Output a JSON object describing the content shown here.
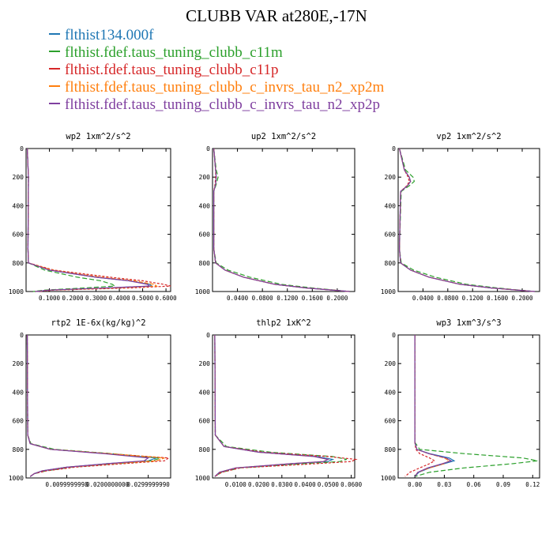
{
  "title": "CLUBB VAR at280E,-17N",
  "colors": [
    "#1f77b4",
    "#2ca02c",
    "#d62728",
    "#ff7f0e",
    "#7f3f9f"
  ],
  "legend": [
    {
      "label": "flthist134.000f",
      "color": "#1f77b4"
    },
    {
      "label": "flthist.fdef.taus_tuning_clubb_c11m",
      "color": "#2ca02c"
    },
    {
      "label": "flthist.fdef.taus_tuning_clubb_c11p",
      "color": "#d62728"
    },
    {
      "label": "flthist.fdef.taus_tuning_clubb_c_invrs_tau_n2_xp2m",
      "color": "#ff7f0e"
    },
    {
      "label": "flthist.fdef.taus_tuning_clubb_c_invrs_tau_n2_xp2p",
      "color": "#7f3f9f"
    }
  ],
  "chart_data": [
    {
      "type": "line",
      "title": "wp2  1xm^2/s^2",
      "xlim": [
        0.0,
        0.62
      ],
      "ylim": [
        1000,
        0
      ],
      "xticks": [
        0.1,
        0.2,
        0.3,
        0.4,
        0.5,
        0.6
      ],
      "xticklabels": [
        "0.1000",
        "0.2000",
        "0.3000",
        "0.4000",
        "0.5000",
        "0.6000"
      ],
      "yticks": [
        0,
        200,
        400,
        600,
        800,
        1000
      ],
      "yticklabels": [
        "0",
        "200",
        "400",
        "600",
        "800",
        "1000"
      ],
      "y": [
        0,
        200,
        700,
        800,
        850,
        900,
        925,
        950,
        962,
        975,
        990,
        1000
      ],
      "series": [
        {
          "values": [
            0.005,
            0.01,
            0.008,
            0.01,
            0.1,
            0.3,
            0.44,
            0.53,
            0.54,
            0.35,
            0.1,
            0.04
          ]
        },
        {
          "values": [
            0.005,
            0.01,
            0.008,
            0.01,
            0.08,
            0.22,
            0.32,
            0.37,
            0.38,
            0.25,
            0.08,
            0.03
          ]
        },
        {
          "values": [
            0.005,
            0.01,
            0.008,
            0.01,
            0.12,
            0.36,
            0.5,
            0.59,
            0.62,
            0.45,
            0.12,
            0.05
          ]
        },
        {
          "values": [
            0.005,
            0.01,
            0.008,
            0.01,
            0.11,
            0.32,
            0.46,
            0.55,
            0.56,
            0.38,
            0.1,
            0.04
          ]
        },
        {
          "values": [
            0.005,
            0.01,
            0.008,
            0.01,
            0.1,
            0.3,
            0.44,
            0.52,
            0.53,
            0.34,
            0.1,
            0.04
          ]
        }
      ]
    },
    {
      "type": "line",
      "title": "up2  1xm^2/s^2",
      "xlim": [
        0.0,
        0.228
      ],
      "ylim": [
        1000,
        0
      ],
      "xticks": [
        0.04,
        0.08,
        0.12,
        0.16,
        0.2
      ],
      "xticklabels": [
        "0.0400",
        "0.0800",
        "0.1200",
        "0.1600",
        "0.2000"
      ],
      "yticks": [
        0,
        200,
        400,
        600,
        800,
        1000
      ],
      "yticklabels": [
        "0",
        "200",
        "400",
        "600",
        "800",
        "1000"
      ],
      "y": [
        0,
        150,
        200,
        250,
        300,
        700,
        800,
        850,
        900,
        950,
        975,
        1000
      ],
      "series": [
        {
          "values": [
            0.002,
            0.005,
            0.006,
            0.005,
            0.002,
            0.002,
            0.005,
            0.02,
            0.05,
            0.1,
            0.15,
            0.22
          ]
        },
        {
          "values": [
            0.002,
            0.006,
            0.009,
            0.006,
            0.002,
            0.002,
            0.006,
            0.025,
            0.06,
            0.11,
            0.16,
            0.22
          ]
        },
        {
          "values": [
            0.002,
            0.005,
            0.005,
            0.004,
            0.002,
            0.002,
            0.005,
            0.02,
            0.05,
            0.1,
            0.15,
            0.22
          ]
        },
        {
          "values": [
            0.002,
            0.005,
            0.006,
            0.005,
            0.002,
            0.002,
            0.005,
            0.02,
            0.05,
            0.1,
            0.15,
            0.22
          ]
        },
        {
          "values": [
            0.002,
            0.005,
            0.006,
            0.005,
            0.002,
            0.002,
            0.005,
            0.02,
            0.05,
            0.1,
            0.15,
            0.22
          ]
        }
      ]
    },
    {
      "type": "line",
      "title": "vp2  1xm^2/s^2",
      "xlim": [
        0.0,
        0.228
      ],
      "ylim": [
        1000,
        0
      ],
      "xticks": [
        0.04,
        0.08,
        0.12,
        0.16,
        0.2
      ],
      "xticklabels": [
        "0.0400",
        "0.0800",
        "0.1200",
        "0.1600",
        "0.2000"
      ],
      "yticks": [
        0,
        200,
        400,
        600,
        800,
        1000
      ],
      "yticklabels": [
        "0",
        "200",
        "400",
        "600",
        "800",
        "1000"
      ],
      "y": [
        0,
        150,
        200,
        230,
        260,
        300,
        700,
        800,
        850,
        900,
        950,
        975,
        1000
      ],
      "series": [
        {
          "values": [
            0.002,
            0.01,
            0.018,
            0.02,
            0.015,
            0.004,
            0.002,
            0.004,
            0.02,
            0.05,
            0.1,
            0.15,
            0.22
          ]
        },
        {
          "values": [
            0.002,
            0.012,
            0.024,
            0.026,
            0.018,
            0.005,
            0.002,
            0.005,
            0.025,
            0.06,
            0.11,
            0.16,
            0.22
          ]
        },
        {
          "values": [
            0.002,
            0.01,
            0.016,
            0.018,
            0.014,
            0.004,
            0.002,
            0.004,
            0.02,
            0.05,
            0.1,
            0.15,
            0.22
          ]
        },
        {
          "values": [
            0.002,
            0.01,
            0.018,
            0.02,
            0.015,
            0.004,
            0.002,
            0.004,
            0.02,
            0.05,
            0.1,
            0.15,
            0.22
          ]
        },
        {
          "values": [
            0.002,
            0.01,
            0.018,
            0.02,
            0.015,
            0.004,
            0.002,
            0.004,
            0.02,
            0.05,
            0.1,
            0.15,
            0.22
          ]
        }
      ]
    },
    {
      "type": "line",
      "title": "rtp2  1E-6x(kg/kg)^2",
      "xlim": [
        0.0,
        0.0355
      ],
      "ylim": [
        1000,
        0
      ],
      "xticks": [
        0.01,
        0.02,
        0.03
      ],
      "xticklabels": [
        "0.0099999998",
        "0.0200000000",
        "0.0299999990"
      ],
      "yticks": [
        0,
        200,
        400,
        600,
        800,
        1000
      ],
      "yticklabels": [
        "0",
        "200",
        "400",
        "600",
        "800",
        "1000"
      ],
      "y": [
        0,
        700,
        760,
        800,
        830,
        860,
        880,
        900,
        925,
        950,
        970,
        990
      ],
      "series": [
        {
          "values": [
            0.0003,
            0.0004,
            0.001,
            0.006,
            0.02,
            0.032,
            0.03,
            0.02,
            0.01,
            0.004,
            0.002,
            0.001
          ]
        },
        {
          "values": [
            0.0003,
            0.0004,
            0.0012,
            0.007,
            0.021,
            0.033,
            0.031,
            0.022,
            0.011,
            0.005,
            0.002,
            0.001
          ]
        },
        {
          "values": [
            0.0003,
            0.0004,
            0.001,
            0.006,
            0.02,
            0.035,
            0.034,
            0.024,
            0.012,
            0.005,
            0.002,
            0.001
          ]
        },
        {
          "values": [
            0.0003,
            0.0004,
            0.001,
            0.006,
            0.02,
            0.034,
            0.032,
            0.021,
            0.01,
            0.004,
            0.002,
            0.001
          ]
        },
        {
          "values": [
            0.0003,
            0.0004,
            0.001,
            0.006,
            0.019,
            0.03,
            0.029,
            0.02,
            0.01,
            0.004,
            0.002,
            0.001
          ]
        }
      ]
    },
    {
      "type": "line",
      "title": "thlp2  1xK^2",
      "xlim": [
        0.0,
        0.0615
      ],
      "ylim": [
        1000,
        0
      ],
      "xticks": [
        0.01,
        0.02,
        0.03,
        0.04,
        0.05,
        0.06
      ],
      "xticklabels": [
        "0.0100",
        "0.0200",
        "0.0300",
        "0.0400",
        "0.0500",
        "0.0600"
      ],
      "yticks": [
        0,
        200,
        400,
        600,
        800,
        1000
      ],
      "yticklabels": [
        "0",
        "200",
        "400",
        "600",
        "800",
        "1000"
      ],
      "y": [
        0,
        700,
        780,
        820,
        850,
        870,
        885,
        900,
        930,
        960,
        990
      ],
      "series": [
        {
          "values": [
            0.001,
            0.0012,
            0.005,
            0.02,
            0.045,
            0.052,
            0.05,
            0.035,
            0.01,
            0.003,
            0.001
          ]
        },
        {
          "values": [
            0.001,
            0.0012,
            0.006,
            0.025,
            0.052,
            0.058,
            0.055,
            0.04,
            0.012,
            0.004,
            0.001
          ]
        },
        {
          "values": [
            0.001,
            0.0012,
            0.005,
            0.022,
            0.05,
            0.062,
            0.06,
            0.045,
            0.012,
            0.004,
            0.001
          ]
        },
        {
          "values": [
            0.001,
            0.0012,
            0.005,
            0.02,
            0.044,
            0.05,
            0.048,
            0.034,
            0.01,
            0.003,
            0.001
          ]
        },
        {
          "values": [
            0.001,
            0.0012,
            0.005,
            0.02,
            0.044,
            0.05,
            0.048,
            0.034,
            0.01,
            0.003,
            0.001
          ]
        }
      ]
    },
    {
      "type": "line",
      "title": "wp3  1xm^3/s^3",
      "xlim": [
        -0.017,
        0.127
      ],
      "ylim": [
        1000,
        0
      ],
      "xticks": [
        0.0,
        0.03,
        0.06,
        0.09,
        0.12
      ],
      "xticklabels": [
        "0.00",
        "0.03",
        "0.06",
        "0.09",
        "0.12"
      ],
      "yticks": [
        0,
        200,
        400,
        600,
        800,
        1000
      ],
      "yticklabels": [
        "0",
        "200",
        "400",
        "600",
        "800",
        "1000"
      ],
      "y": [
        0,
        600,
        750,
        800,
        830,
        860,
        880,
        900,
        930,
        960,
        990
      ],
      "series": [
        {
          "values": [
            0.0,
            0.0,
            0.0,
            0.002,
            0.015,
            0.035,
            0.04,
            0.03,
            0.015,
            0.004,
            0.0
          ]
        },
        {
          "values": [
            0.0,
            0.0,
            0.0,
            0.005,
            0.05,
            0.11,
            0.125,
            0.1,
            0.05,
            0.015,
            0.0
          ]
        },
        {
          "values": [
            0.0,
            0.0,
            0.0,
            0.001,
            0.005,
            0.015,
            0.02,
            0.015,
            0.005,
            -0.005,
            -0.01
          ]
        },
        {
          "values": [
            0.0,
            0.0,
            0.0,
            0.002,
            0.014,
            0.03,
            0.035,
            0.03,
            0.015,
            0.003,
            0.0
          ]
        },
        {
          "values": [
            0.0,
            0.0,
            0.0,
            0.002,
            0.014,
            0.032,
            0.037,
            0.028,
            0.013,
            0.003,
            0.0
          ]
        }
      ]
    }
  ]
}
